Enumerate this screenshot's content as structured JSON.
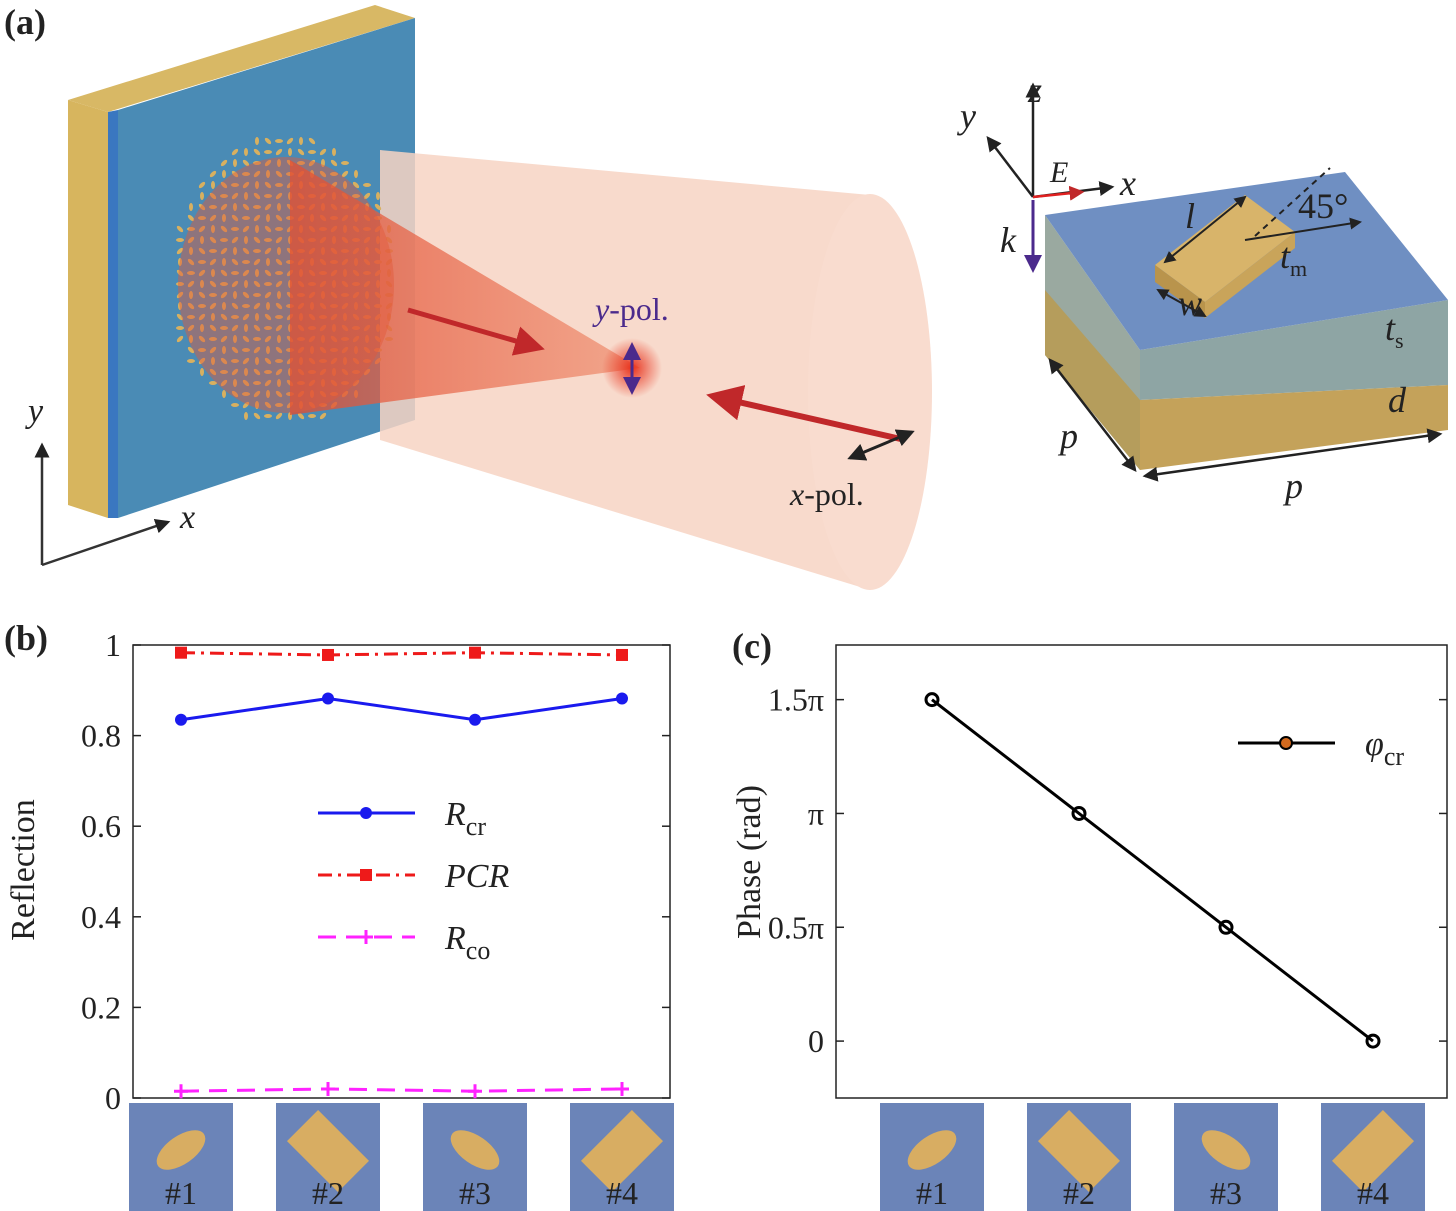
{
  "panel_a": {
    "label": "(a)",
    "axes": {
      "y": "y",
      "x": "x"
    },
    "beam": {
      "y_pol_axis": "y",
      "y_pol_rest": "-pol.",
      "x_pol_axis": "x",
      "x_pol_rest": "-pol."
    },
    "unit_cell": {
      "y": "y",
      "z": "z",
      "E": "E",
      "x": "x",
      "k": "k",
      "l": "l",
      "angle": "45°",
      "tm": "t",
      "tm_sub": "m",
      "w": "w",
      "ts": "t",
      "ts_sub": "s",
      "d": "d",
      "p1": "p",
      "p2": "p"
    }
  },
  "chart_data": [
    {
      "type": "line",
      "panel_label": "(b)",
      "ylabel": "Reflection",
      "categories": [
        "#1",
        "#2",
        "#3",
        "#4"
      ],
      "ylim": [
        0,
        1
      ],
      "yticks": [
        0,
        0.2,
        0.4,
        0.6,
        0.8,
        1
      ],
      "legend": "center",
      "series": [
        {
          "name": "R",
          "subscript": "cr",
          "color": "#1a1aee",
          "marker": "circle",
          "line_style": "solid",
          "values": [
            0.835,
            0.882,
            0.835,
            0.882
          ]
        },
        {
          "name": "PCR",
          "color": "#ee1a1a",
          "marker": "square",
          "line_style": "dash-dot",
          "values": [
            0.983,
            0.978,
            0.983,
            0.978
          ]
        },
        {
          "name": "R",
          "subscript": "co",
          "color": "#ff22ff",
          "marker": "plus",
          "line_style": "dash",
          "values": [
            0.015,
            0.02,
            0.015,
            0.02
          ]
        }
      ]
    },
    {
      "type": "line",
      "panel_label": "(c)",
      "ylabel": "Phase (rad)",
      "categories": [
        "#1",
        "#2",
        "#3",
        "#4"
      ],
      "ylim": [
        -0.25,
        1.74
      ],
      "yticks": [
        0,
        {
          "value": 0.5,
          "label": "0.5π"
        },
        {
          "value": 1,
          "label": "π"
        },
        {
          "value": 1.5,
          "label": "1.5π"
        }
      ],
      "legend": "upper right",
      "series": [
        {
          "name": "φ",
          "subscript": "cr",
          "color": "#000000",
          "marker": "open-circle",
          "legend_marker_color": "#d2691e",
          "line_style": "solid",
          "values": [
            1.5,
            1,
            0.5,
            0
          ]
        }
      ]
    }
  ]
}
